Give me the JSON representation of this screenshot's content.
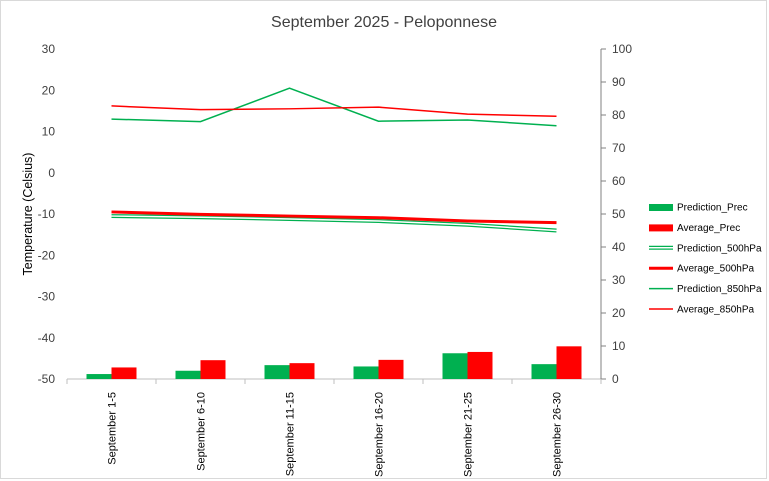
{
  "chart_data": {
    "type": "bar+line",
    "title": "September 2025 - Peloponnese",
    "ylabel": "Temperature (Celsius)",
    "y2label": "",
    "categories": [
      "September 1-5",
      "September 6-10",
      "September 11-15",
      "September 16-20",
      "September 21-25",
      "September 26-30"
    ],
    "y_left": {
      "min": -50,
      "max": 30,
      "ticks": [
        30,
        20,
        10,
        0,
        -10,
        -20,
        -30,
        -40,
        -50
      ]
    },
    "y_right": {
      "min": 0,
      "max": 100,
      "ticks": [
        100,
        90,
        80,
        70,
        60,
        50,
        40,
        30,
        20,
        10,
        0
      ]
    },
    "series": [
      {
        "name": "Prediction_Prec",
        "type": "bar",
        "axis": "right",
        "color": "#00b050",
        "values": [
          1.5,
          2.5,
          4.2,
          3.8,
          7.8,
          4.5
        ]
      },
      {
        "name": "Average_Prec",
        "type": "bar",
        "axis": "right",
        "color": "#ff0000",
        "values": [
          3.5,
          5.7,
          4.8,
          5.8,
          8.2,
          9.9
        ]
      },
      {
        "name": "Prediction_500hPa",
        "type": "line-double",
        "axis": "left",
        "color": "#00b050",
        "values": [
          -10.5,
          -10.8,
          -11.2,
          -11.7,
          -12.6,
          -14.0
        ]
      },
      {
        "name": "Average_500hPa",
        "type": "line-thick",
        "axis": "left",
        "color": "#ff0000",
        "values": [
          -9.5,
          -10.1,
          -10.5,
          -10.9,
          -11.7,
          -12.1
        ]
      },
      {
        "name": "Prediction_850hPa",
        "type": "line",
        "axis": "left",
        "color": "#00b050",
        "values": [
          13.0,
          12.4,
          20.5,
          12.5,
          12.8,
          11.4
        ]
      },
      {
        "name": "Average_850hPa",
        "type": "line",
        "axis": "left",
        "color": "#ff0000",
        "values": [
          16.2,
          15.3,
          15.5,
          15.9,
          14.2,
          13.7
        ]
      }
    ],
    "legend_position": "right",
    "grid": false
  }
}
